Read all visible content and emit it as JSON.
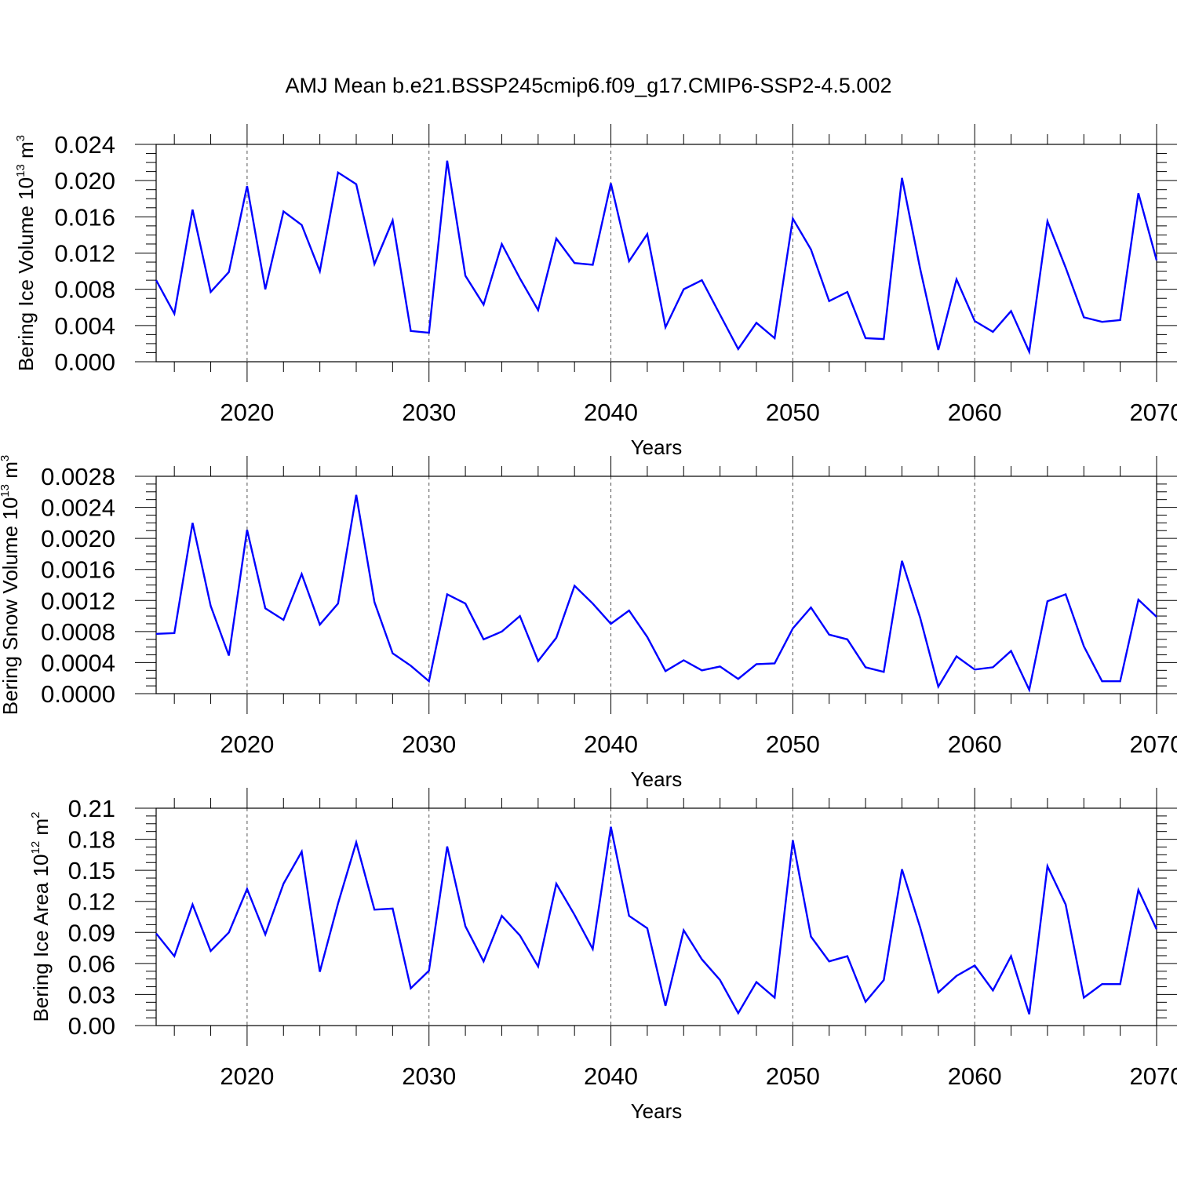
{
  "title": "AMJ Mean b.e21.BSSP245cmip6.f09_g17.CMIP6-SSP2-4.5.002",
  "colors": {
    "line": "#0000ff",
    "axis": "#000000",
    "grid": "#555555"
  },
  "chart_data": [
    {
      "type": "line",
      "ylabel": "Bering Ice Volume",
      "ylabel_unit_base": "10",
      "ylabel_unit_exp": "13",
      "ylabel_unit_tail": " m",
      "ylabel_unit_tail_exp": "3",
      "xlabel": "Years",
      "xlim": [
        2015,
        2070
      ],
      "ylim": [
        0,
        0.024
      ],
      "yticks": [
        "0.000",
        "0.004",
        "0.008",
        "0.012",
        "0.016",
        "0.020",
        "0.024"
      ],
      "xticks": [
        "2020",
        "2030",
        "2040",
        "2050",
        "2060",
        "2070"
      ],
      "grid": "vertical dashed at major x ticks",
      "series": [
        {
          "x": [
            2015,
            2016,
            2017,
            2018,
            2019,
            2020,
            2021,
            2022,
            2023,
            2024,
            2025,
            2026,
            2027,
            2028,
            2029,
            2030,
            2031,
            2032,
            2033,
            2034,
            2035,
            2036,
            2037,
            2038,
            2039,
            2040,
            2041,
            2042,
            2043,
            2044,
            2045,
            2046,
            2047,
            2048,
            2049,
            2050,
            2051,
            2052,
            2053,
            2054,
            2055,
            2056,
            2057,
            2058,
            2059,
            2060,
            2061,
            2062,
            2063,
            2064,
            2065,
            2066,
            2067,
            2068,
            2069,
            2070
          ],
          "y": [
            0.009,
            0.0053,
            0.0168,
            0.0077,
            0.0099,
            0.0194,
            0.008,
            0.0166,
            0.0151,
            0.01,
            0.0209,
            0.0196,
            0.0108,
            0.0156,
            0.0034,
            0.0032,
            0.0222,
            0.0095,
            0.0063,
            0.013,
            0.0092,
            0.0057,
            0.0136,
            0.0109,
            0.0107,
            0.0197,
            0.0111,
            0.0141,
            0.0038,
            0.008,
            0.009,
            0.0052,
            0.0014,
            0.0043,
            0.0026,
            0.0158,
            0.0124,
            0.0067,
            0.0077,
            0.0026,
            0.0025,
            0.0203,
            0.0103,
            0.0013,
            0.0091,
            0.0045,
            0.0033,
            0.0056,
            0.0011,
            0.0155,
            0.0104,
            0.0049,
            0.0044,
            0.0046,
            0.0186,
            0.0112
          ]
        }
      ]
    },
    {
      "type": "line",
      "ylabel": "Bering Snow Volume",
      "ylabel_unit_base": "10",
      "ylabel_unit_exp": "13",
      "ylabel_unit_tail": " m",
      "ylabel_unit_tail_exp": "3",
      "xlabel": "Years",
      "xlim": [
        2015,
        2070
      ],
      "ylim": [
        0,
        0.0028
      ],
      "yticks": [
        "0.0000",
        "0.0004",
        "0.0008",
        "0.0012",
        "0.0016",
        "0.0020",
        "0.0024",
        "0.0028"
      ],
      "xticks": [
        "2020",
        "2030",
        "2040",
        "2050",
        "2060",
        "2070"
      ],
      "grid": "vertical dashed at major x ticks",
      "series": [
        {
          "x": [
            2015,
            2016,
            2017,
            2018,
            2019,
            2020,
            2021,
            2022,
            2023,
            2024,
            2025,
            2026,
            2027,
            2028,
            2029,
            2030,
            2031,
            2032,
            2033,
            2034,
            2035,
            2036,
            2037,
            2038,
            2039,
            2040,
            2041,
            2042,
            2043,
            2044,
            2045,
            2046,
            2047,
            2048,
            2049,
            2050,
            2051,
            2052,
            2053,
            2054,
            2055,
            2056,
            2057,
            2058,
            2059,
            2060,
            2061,
            2062,
            2063,
            2064,
            2065,
            2066,
            2067,
            2068,
            2069,
            2070
          ],
          "y": [
            0.00077,
            0.00078,
            0.0022,
            0.00113,
            0.00049,
            0.00211,
            0.0011,
            0.00095,
            0.00154,
            0.00089,
            0.00116,
            0.00256,
            0.00118,
            0.00052,
            0.00036,
            0.00016,
            0.00128,
            0.00116,
            0.0007,
            0.0008,
            0.001,
            0.00042,
            0.00072,
            0.00139,
            0.00116,
            0.0009,
            0.00107,
            0.00073,
            0.00029,
            0.00043,
            0.0003,
            0.00035,
            0.00019,
            0.00038,
            0.00039,
            0.00084,
            0.00111,
            0.00076,
            0.0007,
            0.00034,
            0.00028,
            0.00171,
            0.00098,
            9e-05,
            0.00048,
            0.00031,
            0.00034,
            0.00055,
            5e-05,
            0.00119,
            0.00128,
            0.00061,
            0.00016,
            0.00016,
            0.00121,
            0.00099
          ]
        }
      ]
    },
    {
      "type": "line",
      "ylabel": "Bering Ice Area",
      "ylabel_unit_base": "10",
      "ylabel_unit_exp": "12",
      "ylabel_unit_tail": " m",
      "ylabel_unit_tail_exp": "2",
      "xlabel": "Years",
      "xlim": [
        2015,
        2070
      ],
      "ylim": [
        0,
        0.21
      ],
      "yticks": [
        "0.00",
        "0.03",
        "0.06",
        "0.09",
        "0.12",
        "0.15",
        "0.18",
        "0.21"
      ],
      "xticks": [
        "2020",
        "2030",
        "2040",
        "2050",
        "2060",
        "2070"
      ],
      "grid": "vertical dashed at major x ticks",
      "series": [
        {
          "x": [
            2015,
            2016,
            2017,
            2018,
            2019,
            2020,
            2021,
            2022,
            2023,
            2024,
            2025,
            2026,
            2027,
            2028,
            2029,
            2030,
            2031,
            2032,
            2033,
            2034,
            2035,
            2036,
            2037,
            2038,
            2039,
            2040,
            2041,
            2042,
            2043,
            2044,
            2045,
            2046,
            2047,
            2048,
            2049,
            2050,
            2051,
            2052,
            2053,
            2054,
            2055,
            2056,
            2057,
            2058,
            2059,
            2060,
            2061,
            2062,
            2063,
            2064,
            2065,
            2066,
            2067,
            2068,
            2069,
            2070
          ],
          "y": [
            0.089,
            0.067,
            0.117,
            0.072,
            0.09,
            0.132,
            0.088,
            0.137,
            0.168,
            0.052,
            0.118,
            0.177,
            0.112,
            0.113,
            0.036,
            0.053,
            0.173,
            0.096,
            0.062,
            0.106,
            0.087,
            0.057,
            0.137,
            0.107,
            0.074,
            0.192,
            0.106,
            0.094,
            0.019,
            0.092,
            0.064,
            0.044,
            0.012,
            0.042,
            0.027,
            0.179,
            0.086,
            0.062,
            0.067,
            0.023,
            0.044,
            0.151,
            0.095,
            0.032,
            0.048,
            0.058,
            0.034,
            0.067,
            0.011,
            0.154,
            0.117,
            0.027,
            0.04,
            0.04,
            0.131,
            0.093
          ]
        }
      ]
    }
  ]
}
